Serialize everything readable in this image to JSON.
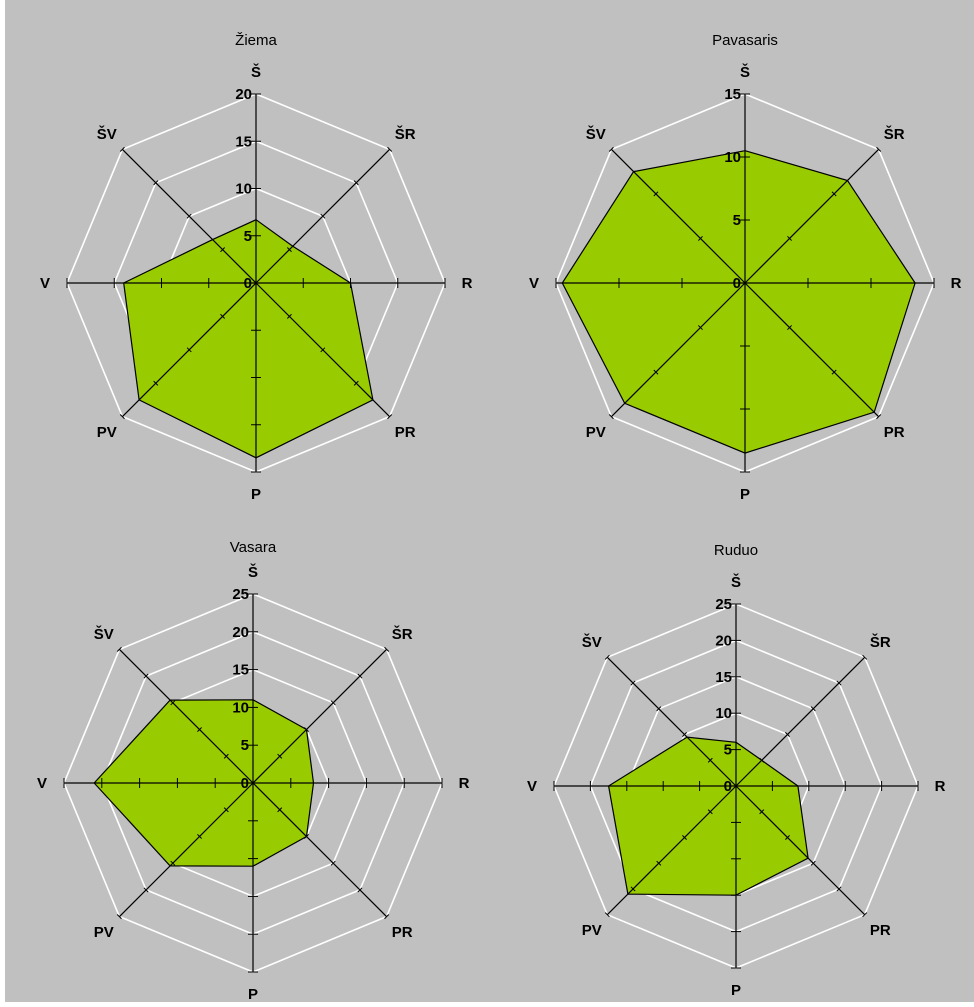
{
  "chart_data": [
    {
      "type": "radar",
      "title": "Žiema",
      "categories": [
        "Š",
        "ŠR",
        "R",
        "PR",
        "P",
        "PV",
        "V",
        "ŠV"
      ],
      "rlim": [
        0,
        20
      ],
      "ticks": [
        "0",
        "5",
        "10",
        "15",
        "20"
      ],
      "values": [
        6.7,
        5.5,
        10,
        17.5,
        18.5,
        17.5,
        14,
        6.5
      ],
      "fill_color": "#99cc00",
      "grid": true
    },
    {
      "type": "radar",
      "title": "Pavasaris",
      "categories": [
        "Š",
        "ŠR",
        "R",
        "PR",
        "P",
        "PV",
        "V",
        "ŠV"
      ],
      "rlim": [
        0,
        15
      ],
      "ticks": [
        "0",
        "5",
        "10",
        "15"
      ],
      "values": [
        10.5,
        11.5,
        13.5,
        14.5,
        13.5,
        13.5,
        14.5,
        12.5
      ],
      "fill_color": "#99cc00",
      "grid": true
    },
    {
      "type": "radar",
      "title": "Vasara",
      "categories": [
        "Š",
        "ŠR",
        "R",
        "PR",
        "P",
        "PV",
        "V",
        "ŠV"
      ],
      "rlim": [
        0,
        25
      ],
      "ticks": [
        "0",
        "5",
        "10",
        "15",
        "20",
        "25"
      ],
      "values": [
        11,
        10,
        8,
        10,
        11,
        15.5,
        21,
        15.5
      ],
      "fill_color": "#99cc00",
      "grid": true
    },
    {
      "type": "radar",
      "title": "Ruduo",
      "categories": [
        "Š",
        "ŠR",
        "R",
        "PR",
        "P",
        "PV",
        "V",
        "ŠV"
      ],
      "rlim": [
        0,
        25
      ],
      "ticks": [
        "0",
        "5",
        "10",
        "15",
        "20",
        "25"
      ],
      "values": [
        6,
        5,
        8.5,
        14,
        15,
        21,
        17.5,
        9.5
      ],
      "fill_color": "#99cc00",
      "grid": true
    }
  ]
}
